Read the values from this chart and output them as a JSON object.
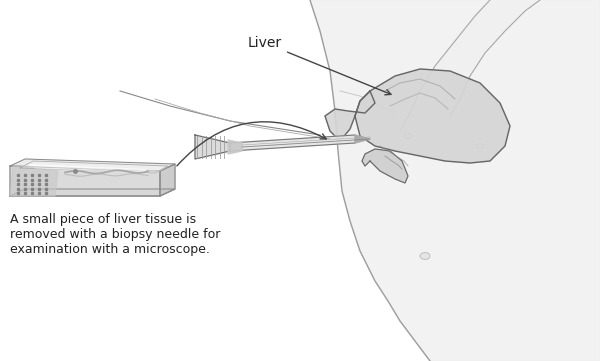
{
  "bg_color": "#ffffff",
  "body_fill": "#f0f0f0",
  "body_edge": "#888888",
  "liver_fill": "#d8d8d8",
  "liver_edge": "#666666",
  "needle_fill": "#e0e0e0",
  "needle_edge": "#777777",
  "slide_fill": "#e8e8e8",
  "slide_edge": "#888888",
  "text_color": "#222222",
  "line_color": "#555555",
  "label_liver": "Liver",
  "caption": "A small piece of liver tissue is\nremoved with a biopsy needle for\nexamination with a microscope.",
  "figsize": [
    6.0,
    3.61
  ],
  "dpi": 100
}
